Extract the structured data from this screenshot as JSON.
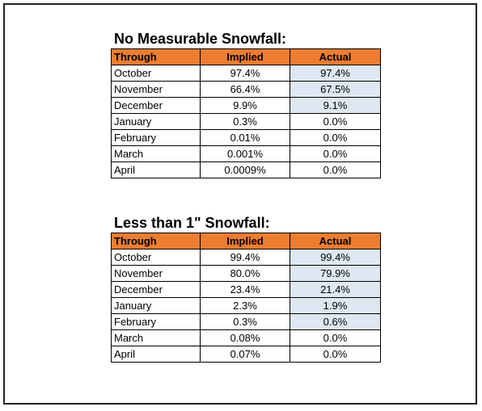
{
  "colors": {
    "header_fill": "#ed7d31",
    "highlight_fill": "#dde8f3",
    "border": "#000000"
  },
  "tables": [
    {
      "title": "No Measurable Snowfall:",
      "headers": [
        "Through",
        "Implied",
        "Actual"
      ],
      "rows": [
        {
          "month": "October",
          "implied": "97.4%",
          "actual": "97.4%",
          "highlighted": true
        },
        {
          "month": "November",
          "implied": "66.4%",
          "actual": "67.5%",
          "highlighted": true
        },
        {
          "month": "December",
          "implied": "9.9%",
          "actual": "9.1%",
          "highlighted": true
        },
        {
          "month": "January",
          "implied": "0.3%",
          "actual": "0.0%",
          "highlighted": false
        },
        {
          "month": "February",
          "implied": "0.01%",
          "actual": "0.0%",
          "highlighted": false
        },
        {
          "month": "March",
          "implied": "0.001%",
          "actual": "0.0%",
          "highlighted": false
        },
        {
          "month": "April",
          "implied": "0.0009%",
          "actual": "0.0%",
          "highlighted": false
        }
      ]
    },
    {
      "title": "Less than 1\" Snowfall:",
      "headers": [
        "Through",
        "Implied",
        "Actual"
      ],
      "rows": [
        {
          "month": "October",
          "implied": "99.4%",
          "actual": "99.4%",
          "highlighted": true
        },
        {
          "month": "November",
          "implied": "80.0%",
          "actual": "79.9%",
          "highlighted": true
        },
        {
          "month": "December",
          "implied": "23.4%",
          "actual": "21.4%",
          "highlighted": true
        },
        {
          "month": "January",
          "implied": "2.3%",
          "actual": "1.9%",
          "highlighted": true
        },
        {
          "month": "February",
          "implied": "0.3%",
          "actual": "0.6%",
          "highlighted": true
        },
        {
          "month": "March",
          "implied": "0.08%",
          "actual": "0.0%",
          "highlighted": false
        },
        {
          "month": "April",
          "implied": "0.07%",
          "actual": "0.0%",
          "highlighted": false
        }
      ]
    }
  ]
}
